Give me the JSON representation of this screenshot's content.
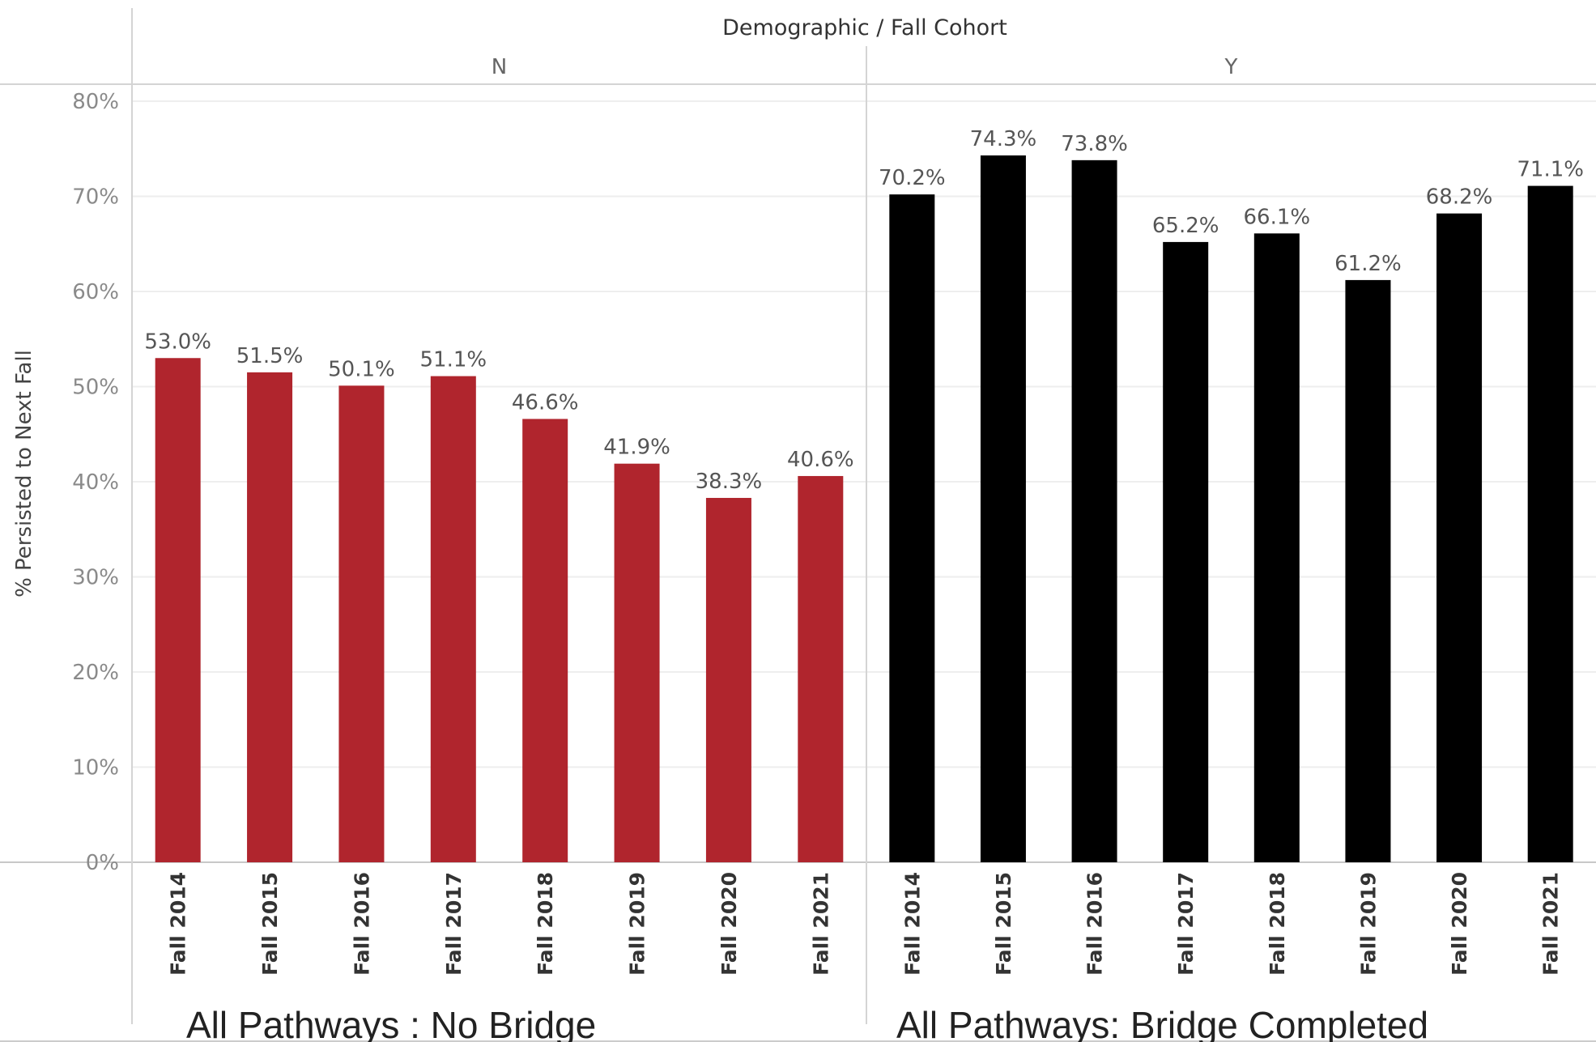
{
  "chart_data": {
    "type": "bar",
    "title": "Demographic / Fall Cohort",
    "ylabel": "% Persisted to Next Fall",
    "ylim": [
      0,
      80
    ],
    "yticks": [
      "0%",
      "10%",
      "20%",
      "30%",
      "40%",
      "50%",
      "60%",
      "70%",
      "80%"
    ],
    "grid": true,
    "categories": [
      "Fall 2014",
      "Fall 2015",
      "Fall 2016",
      "Fall 2017",
      "Fall 2018",
      "Fall 2019",
      "Fall 2020",
      "Fall 2021"
    ],
    "panels": [
      {
        "header": "N",
        "caption": "All Pathways : No Bridge",
        "color": "#b0252d",
        "values": [
          53.0,
          51.5,
          50.1,
          51.1,
          46.6,
          41.9,
          38.3,
          40.6
        ],
        "labels": [
          "53.0%",
          "51.5%",
          "50.1%",
          "51.1%",
          "46.6%",
          "41.9%",
          "38.3%",
          "40.6%"
        ]
      },
      {
        "header": "Y",
        "caption": "All Pathways: Bridge Completed",
        "color": "#000000",
        "values": [
          70.2,
          74.3,
          73.8,
          65.2,
          66.1,
          61.2,
          68.2,
          71.1
        ],
        "labels": [
          "70.2%",
          "74.3%",
          "73.8%",
          "65.2%",
          "66.1%",
          "61.2%",
          "68.2%",
          "71.1%"
        ]
      }
    ]
  }
}
